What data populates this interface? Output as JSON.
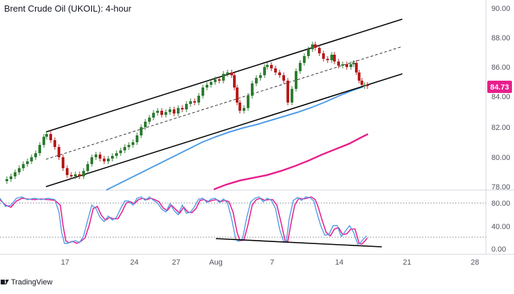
{
  "header": {
    "title": "Brent Crude Oil (UKOIL): 4-hour"
  },
  "price_axis": {
    "ticks": [
      "90.00",
      "88.00",
      "86.00",
      "84.00",
      "82.00",
      "80.00",
      "78.00"
    ],
    "current_price": "84.73",
    "current_price_color": "#e91e8c"
  },
  "oscillator_axis": {
    "ticks": [
      "80.00",
      "40.00",
      "0.00"
    ]
  },
  "time_axis": {
    "ticks": [
      "17",
      "24",
      "27",
      "Aug",
      "7",
      "14",
      "21",
      "28"
    ]
  },
  "footer": {
    "brand": "TradingView",
    "logo_icon": "tradingview-logo-icon"
  },
  "colors": {
    "candle_up": "#2e7d32",
    "candle_down": "#b71c1c",
    "ma_fast": "#4c9be8",
    "ma_slow": "#e91e8c",
    "channel": "#000000",
    "stoch_k": "#4c9be8",
    "stoch_d": "#e91e8c"
  }
}
